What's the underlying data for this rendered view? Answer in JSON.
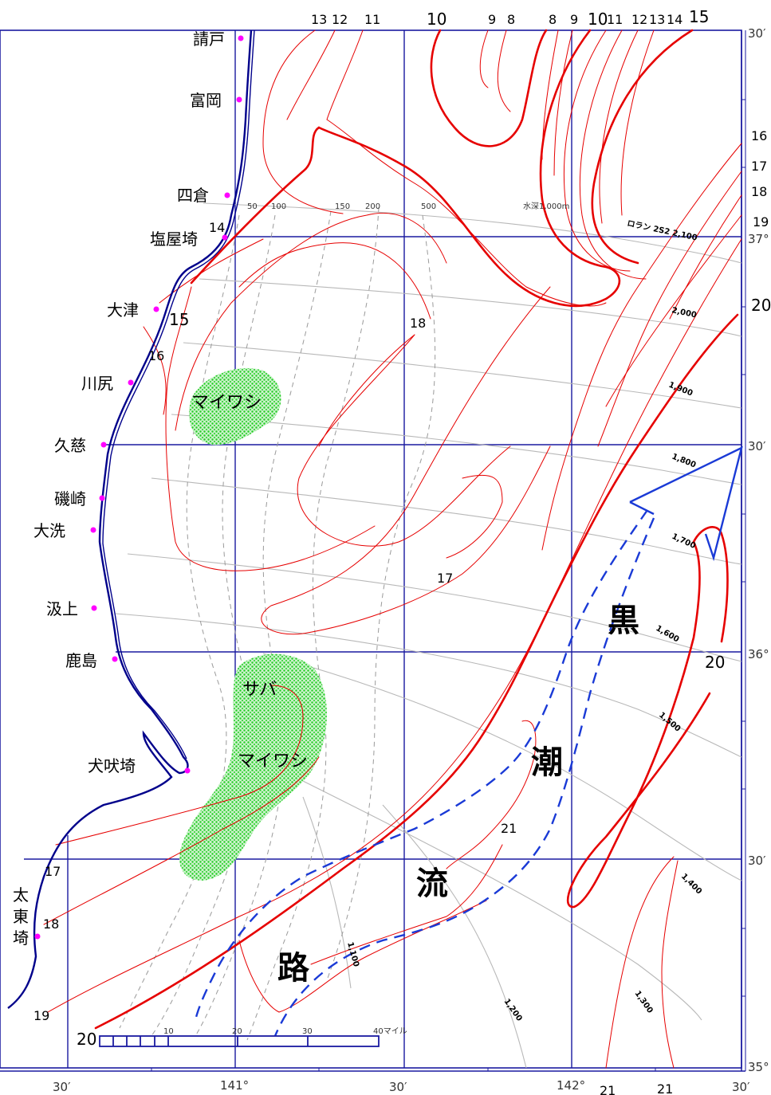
{
  "places": [
    "請戸",
    "富岡",
    "四倉",
    "塩屋埼",
    "大津",
    "川尻",
    "久慈",
    "磯崎",
    "大洗",
    "汲上",
    "鹿島",
    "犬吠埼",
    "太",
    "東",
    "埼"
  ],
  "top_isotherm_labels": [
    "13",
    "12",
    "11",
    "10",
    "9",
    "8",
    "8",
    "9",
    "10",
    "11",
    "12",
    "13",
    "14",
    "15"
  ],
  "right_isotherm_labels": [
    "16",
    "17",
    "18",
    "19",
    "20"
  ],
  "inner_isotherm_labels": [
    "14",
    "15",
    "16",
    "18",
    "17",
    "21",
    "20",
    "17",
    "18",
    "19",
    "20"
  ],
  "lat_labels": [
    "30′",
    "37°",
    "30′",
    "36°",
    "30′",
    "35°"
  ],
  "lon_labels": [
    "30′",
    "141°",
    "30′",
    "142°",
    "30′"
  ],
  "bottom_extra": [
    "21",
    "21"
  ],
  "shelf_depths": [
    "50",
    "100",
    "150",
    "200",
    "500",
    "水深1,000m"
  ],
  "loran_title": "ロラン 2S2 2,100",
  "loran_lines": [
    "2,000",
    "1,900",
    "1,800",
    "1,700",
    "1,600",
    "1,500",
    "1,400",
    "1,300",
    "1,200",
    "1,100"
  ],
  "kuroshio_label": [
    "黒",
    "潮",
    "流",
    "路"
  ],
  "fishing_grounds": [
    "マイワシ",
    "サバ",
    "マイワシ"
  ],
  "scale_bar": {
    "ticks": [
      "10",
      "20",
      "30",
      "40マイル"
    ]
  },
  "colors": {
    "isotherm": "#e60000",
    "grid": "#1a1aa0",
    "coast": "#00008b",
    "kuroshio_axis": "#1a3ad6",
    "loran": "#b8b8b8",
    "fishing_ground": "#22cc22",
    "place_marker": "#ff00ff"
  }
}
